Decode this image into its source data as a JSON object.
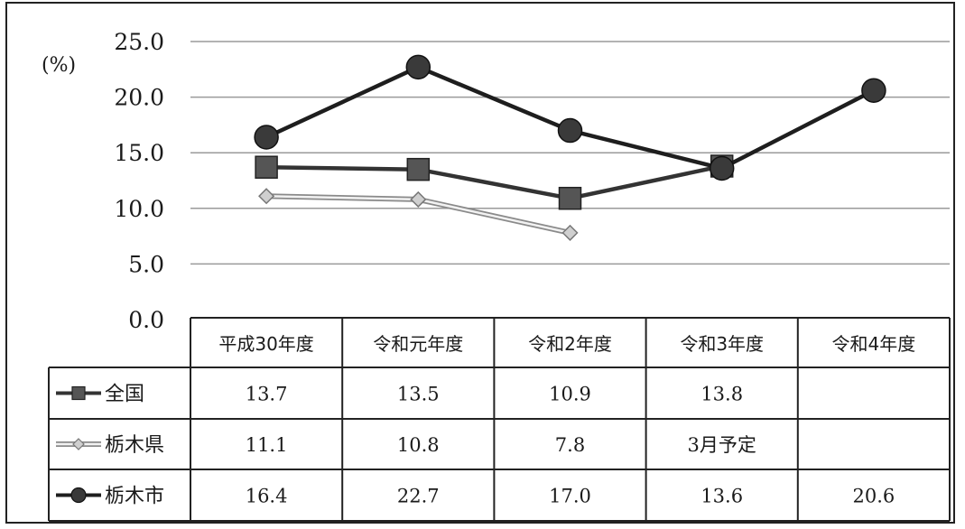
{
  "chart_data": {
    "type": "line",
    "unit_label": "(%)",
    "ylim": [
      0,
      25
    ],
    "y_ticks": [
      "0.0",
      "5.0",
      "10.0",
      "15.0",
      "20.0",
      "25.0"
    ],
    "categories": [
      "平成30年度",
      "令和元年度",
      "令和2年度",
      "令和3年度",
      "令和4年度"
    ],
    "grid": true,
    "legend": "table-left",
    "series": [
      {
        "name": "全国",
        "values": [
          13.7,
          13.5,
          10.9,
          13.8,
          null
        ],
        "cells": [
          "13.7",
          "13.5",
          "10.9",
          "13.8",
          ""
        ],
        "color": "#333333",
        "marker": "square"
      },
      {
        "name": "栃木県",
        "values": [
          11.1,
          10.8,
          7.8,
          null,
          null
        ],
        "cells": [
          "11.1",
          "10.8",
          "7.8",
          "3月予定",
          ""
        ],
        "color": "#8a8a8a",
        "marker": "diamond"
      },
      {
        "name": "栃木市",
        "values": [
          16.4,
          22.7,
          17.0,
          13.6,
          20.6
        ],
        "cells": [
          "16.4",
          "22.7",
          "17.0",
          "13.6",
          "20.6"
        ],
        "color": "#1e1e1e",
        "marker": "circle"
      }
    ]
  }
}
